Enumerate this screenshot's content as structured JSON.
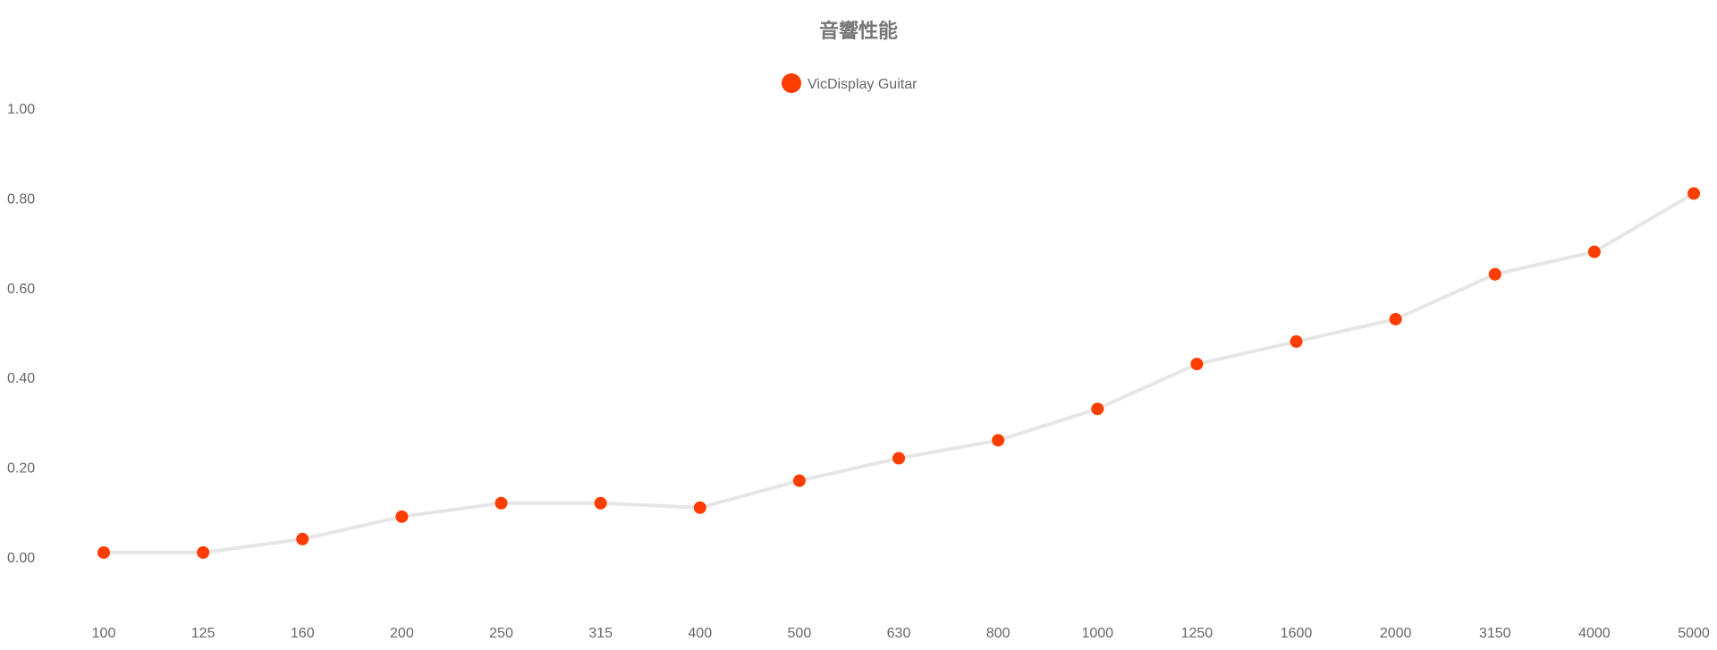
{
  "chart_data": {
    "type": "line",
    "title": "音響性能",
    "legend_position": "top",
    "categories": [
      "100",
      "125",
      "160",
      "200",
      "250",
      "315",
      "400",
      "500",
      "630",
      "800",
      "1000",
      "1250",
      "1600",
      "2000",
      "3150",
      "4000",
      "5000"
    ],
    "series": [
      {
        "name": "VicDisplay Guitar",
        "values": [
          0.01,
          0.01,
          0.04,
          0.09,
          0.12,
          0.12,
          0.11,
          0.17,
          0.22,
          0.26,
          0.33,
          0.43,
          0.48,
          0.53,
          0.63,
          0.68,
          0.81
        ]
      }
    ],
    "yticks": [
      "0.00",
      "0.20",
      "0.40",
      "0.60",
      "0.80",
      "1.00"
    ],
    "ylim": [
      0,
      1
    ],
    "grid": false,
    "colors": {
      "marker": "#ff3d00",
      "line": "#e6e6e6",
      "text": "#666666"
    }
  }
}
